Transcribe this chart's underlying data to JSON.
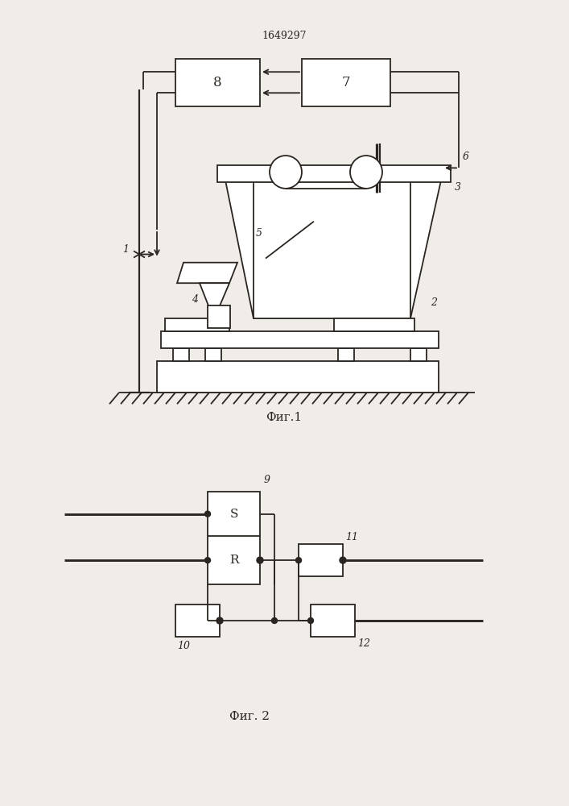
{
  "title": "1649297",
  "fig1_caption": "Фиг.1",
  "fig2_caption": "Фиг. 2",
  "bg_color": "#f0ede8",
  "line_color": "#2a2520",
  "lw": 1.3
}
